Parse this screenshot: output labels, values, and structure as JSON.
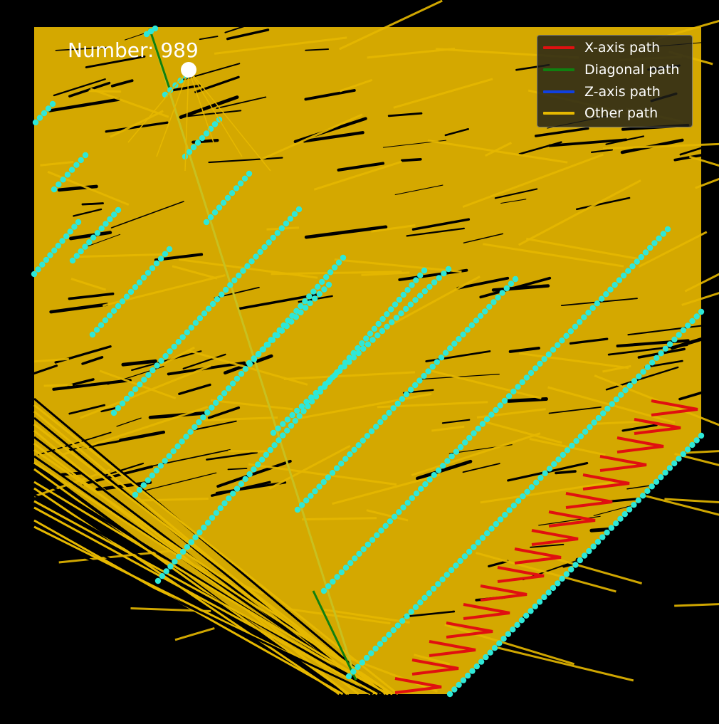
{
  "chart_data": {
    "type": "scatter",
    "title": "",
    "counter": {
      "label": "Number: 989",
      "value": 989
    },
    "legend": {
      "placement": "top-right",
      "entries": [
        {
          "label": "X-axis path",
          "color": "#e01010"
        },
        {
          "label": "Diagonal path",
          "color": "#108010"
        },
        {
          "label": "Z-axis path",
          "color": "#1040e0"
        },
        {
          "label": "Other path",
          "color": "#e6b800"
        }
      ]
    },
    "colors": {
      "background": "#000000",
      "fill": "#d4a800",
      "other_path": "#e6b800",
      "x_axis_path": "#e01010",
      "diagonal_path": "#108010",
      "points": "#2ee8d8",
      "current_point": "#ffffff"
    },
    "axes_visible": false,
    "grid": false
  }
}
